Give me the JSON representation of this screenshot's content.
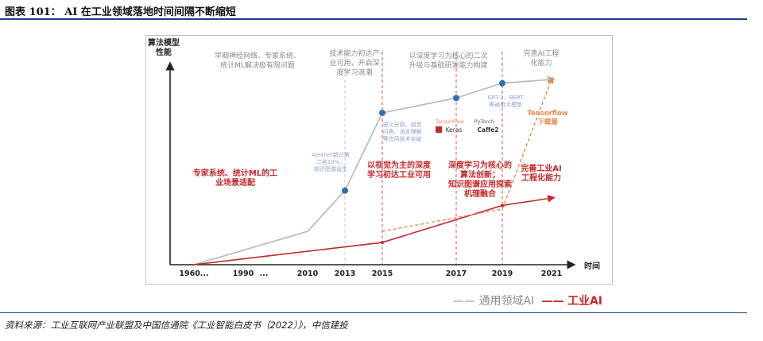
{
  "title": "图表 101：  AI 在工业领域落地时间间隔不断缩短",
  "source": "资料来源：工业互联网产业联盟及中国信通院《工业智能白皮书（2022）》，中信建投",
  "legend": {
    "general_ai": "通用领域AI",
    "industrial_ai": "工业AI"
  },
  "colors": {
    "general": "#bdbdbd",
    "industrial": "#c62828",
    "accent": "#e8894a",
    "point": "#2e6fbe",
    "title_rule": "#1a3f8f"
  },
  "chart_data": {
    "type": "line",
    "ylabel": "算法模型\n性能",
    "xlabel": "时间",
    "x_ticks": [
      "1960...",
      "1990",
      "...",
      "2010",
      "2013",
      "2015",
      "2017",
      "2019",
      "2021"
    ],
    "series": [
      {
        "name": "通用领域AI",
        "points": [
          [
            "1960...",
            0
          ],
          [
            "2010",
            18
          ],
          [
            "2013",
            40
          ],
          [
            "2015",
            82
          ],
          [
            "2017",
            90
          ],
          [
            "2019",
            98
          ],
          [
            "2021",
            100
          ]
        ]
      },
      {
        "name": "工业AI",
        "points": [
          [
            "1960...",
            0
          ],
          [
            "2015",
            12
          ],
          [
            "2019",
            32
          ],
          [
            "2021",
            36
          ]
        ]
      },
      {
        "name": "Tensorflow下载量",
        "points": [
          [
            "2015",
            18
          ],
          [
            "2019",
            30
          ],
          [
            "2021",
            100
          ]
        ]
      }
    ],
    "markers": [
      [
        "2013",
        40
      ],
      [
        "2015",
        82
      ],
      [
        "2017",
        90
      ],
      [
        "2019",
        98
      ]
    ],
    "dashed_dividers": [
      "2013",
      "2015",
      "2017",
      "2019"
    ],
    "era_labels": [
      "早期神经网络、专家系统、\n统计ML解决极有限问题",
      "技术能力初达产\n业可用，开启深\n度学习浪潮",
      "以深度学习为核心的二次\n升级与基础研发能力构建",
      "完善AI工程\n化能力"
    ],
    "general_annotations": [
      "Alexnet超过第\n二名10%，\n知识图谱诞生",
      "语义分割、视觉\n问答、语言理解\n等应用技术突破",
      "GPT-1、BERT\n等通用大模型",
      "Tensorflow\n下载量"
    ],
    "framework_labels": [
      "TensorFlow",
      "PyTorch",
      "Keras",
      "Caffe2"
    ],
    "industrial_annotations": [
      "专家系统、统计ML的工\n业场景适配",
      "以视觉为主的深度\n学习初达工业可用",
      "深度学习为核心的\n算法创新；\n知识图谱应用探索\n机理融合",
      "完善工业AI\n工程化能力"
    ]
  }
}
